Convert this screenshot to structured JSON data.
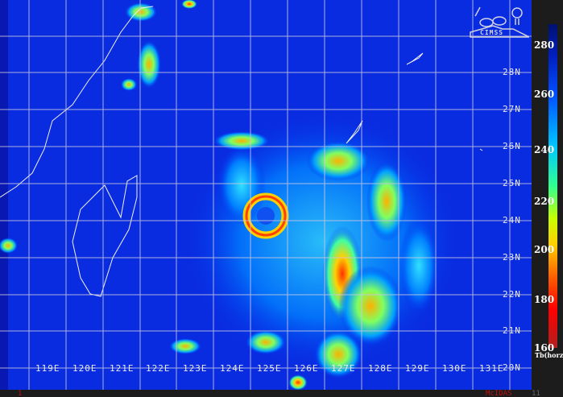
{
  "map": {
    "longitude_labels": [
      "119E",
      "120E",
      "121E",
      "122E",
      "123E",
      "124E",
      "125E",
      "126E",
      "127E",
      "128E",
      "129E",
      "130E",
      "131E"
    ],
    "latitude_labels": [
      "28N",
      "27N",
      "26N",
      "25N",
      "24N",
      "23N",
      "22N",
      "21N",
      "20N"
    ]
  },
  "colorbar": {
    "ticks": [
      "280",
      "260",
      "240",
      "220",
      "200",
      "180",
      "160"
    ],
    "unit": "Tb(horz)",
    "colors": [
      "#001070",
      "#0050ff",
      "#00c8ff",
      "#30ff90",
      "#ffd000",
      "#ff6000",
      "#ff0000"
    ]
  },
  "logo": {
    "text": "CIMSS"
  },
  "footer": {
    "software": "McIDAS",
    "frame": "1",
    "index": "11"
  }
}
